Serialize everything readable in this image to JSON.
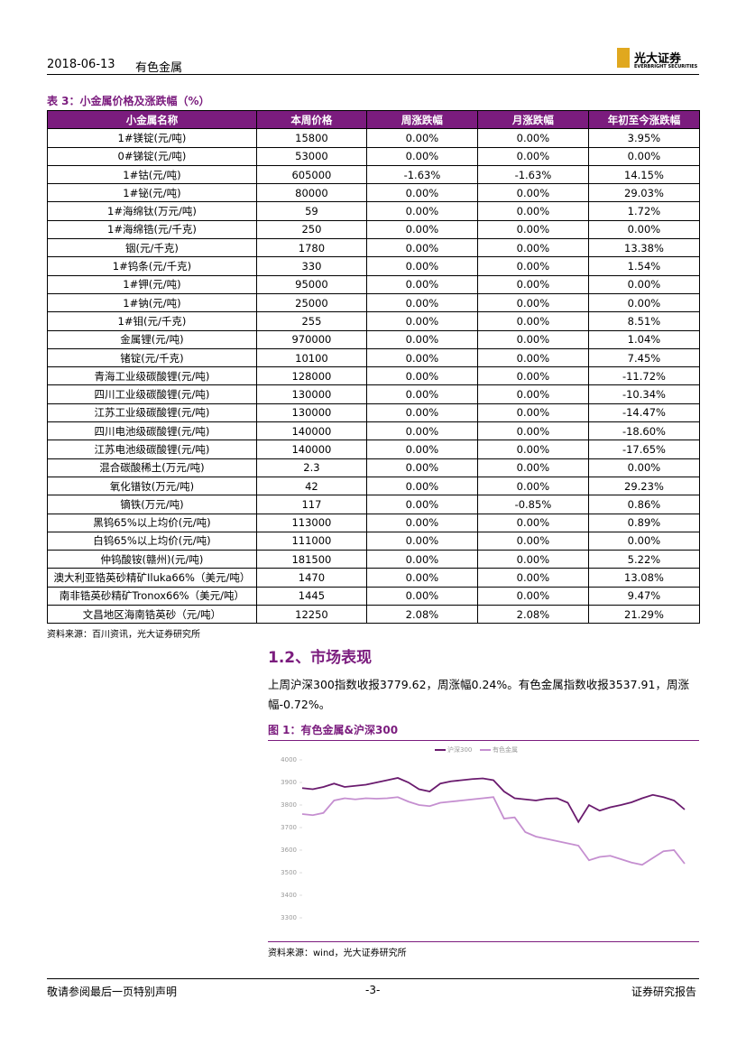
{
  "header": {
    "date": "2018-06-13",
    "industry": "有色金属",
    "logo_cn": "光大证券",
    "logo_en": "EVERBRIGHT SECURITIES"
  },
  "table": {
    "caption": "表 3：小金属价格及涨跌幅（%）",
    "columns": [
      "小金属名称",
      "本周价格",
      "周涨跌幅",
      "月涨跌幅",
      "年初至今涨跌幅"
    ],
    "rows": [
      [
        "1#镁锭(元/吨)",
        "15800",
        "0.00%",
        "0.00%",
        "3.95%"
      ],
      [
        "0#锑锭(元/吨)",
        "53000",
        "0.00%",
        "0.00%",
        "0.00%"
      ],
      [
        "1#钴(元/吨)",
        "605000",
        "-1.63%",
        "-1.63%",
        "14.15%"
      ],
      [
        "1#铋(元/吨)",
        "80000",
        "0.00%",
        "0.00%",
        "29.03%"
      ],
      [
        "1#海绵钛(万元/吨)",
        "59",
        "0.00%",
        "0.00%",
        "1.72%"
      ],
      [
        "1#海绵锆(元/千克)",
        "250",
        "0.00%",
        "0.00%",
        "0.00%"
      ],
      [
        "铟(元/千克)",
        "1780",
        "0.00%",
        "0.00%",
        "13.38%"
      ],
      [
        "1#钨条(元/千克)",
        "330",
        "0.00%",
        "0.00%",
        "1.54%"
      ],
      [
        "1#钾(元/吨)",
        "95000",
        "0.00%",
        "0.00%",
        "0.00%"
      ],
      [
        "1#钠(元/吨)",
        "25000",
        "0.00%",
        "0.00%",
        "0.00%"
      ],
      [
        "1#钼(元/千克)",
        "255",
        "0.00%",
        "0.00%",
        "8.51%"
      ],
      [
        "金属锂(元/吨)",
        "970000",
        "0.00%",
        "0.00%",
        "1.04%"
      ],
      [
        "锗锭(元/千克)",
        "10100",
        "0.00%",
        "0.00%",
        "7.45%"
      ],
      [
        "青海工业级碳酸锂(元/吨)",
        "128000",
        "0.00%",
        "0.00%",
        "-11.72%"
      ],
      [
        "四川工业级碳酸锂(元/吨)",
        "130000",
        "0.00%",
        "0.00%",
        "-10.34%"
      ],
      [
        "江苏工业级碳酸锂(元/吨)",
        "130000",
        "0.00%",
        "0.00%",
        "-14.47%"
      ],
      [
        "四川电池级碳酸锂(元/吨)",
        "140000",
        "0.00%",
        "0.00%",
        "-18.60%"
      ],
      [
        "江苏电池级碳酸锂(元/吨)",
        "140000",
        "0.00%",
        "0.00%",
        "-17.65%"
      ],
      [
        "混合碳酸稀土(万元/吨)",
        "2.3",
        "0.00%",
        "0.00%",
        "0.00%"
      ],
      [
        "氧化镨钕(万元/吨)",
        "42",
        "0.00%",
        "0.00%",
        "29.23%"
      ],
      [
        "镝铁(万元/吨)",
        "117",
        "0.00%",
        "-0.85%",
        "0.86%"
      ],
      [
        "黑钨65%以上均价(元/吨)",
        "113000",
        "0.00%",
        "0.00%",
        "0.89%"
      ],
      [
        "白钨65%以上均价(元/吨)",
        "111000",
        "0.00%",
        "0.00%",
        "0.00%"
      ],
      [
        "仲钨酸铵(赣州)(元/吨)",
        "181500",
        "0.00%",
        "0.00%",
        "5.22%"
      ],
      [
        "澳大利亚锆英砂精矿Iluka66%（美元/吨）",
        "1470",
        "0.00%",
        "0.00%",
        "13.08%"
      ],
      [
        "南非锆英砂精矿Tronox66%（美元/吨）",
        "1445",
        "0.00%",
        "0.00%",
        "9.47%"
      ],
      [
        "文昌地区海南锆英砂（元/吨）",
        "12250",
        "2.08%",
        "2.08%",
        "21.29%"
      ]
    ],
    "source": "资料来源：百川资讯，光大证券研究所"
  },
  "section": {
    "heading": "1.2、市场表现",
    "paragraph": "上周沪深300指数收报3779.62，周涨幅0.24%。有色金属指数收报3537.91，周涨幅-0.72%。"
  },
  "chart_data": {
    "type": "line",
    "title": "图 1：有色金属&沪深300",
    "categories": [
      null,
      null,
      null,
      null,
      null,
      null,
      null,
      null,
      null,
      null,
      null,
      null,
      null,
      null,
      null,
      null,
      null,
      null,
      null,
      null,
      null,
      null,
      null,
      null,
      null,
      null,
      null,
      null,
      null,
      null,
      null,
      null,
      null,
      null,
      null,
      null,
      null
    ],
    "series": [
      {
        "name": "沪深300",
        "color": "#6a1b6e",
        "values": [
          3875,
          3870,
          3880,
          3895,
          3880,
          3885,
          3890,
          3900,
          3910,
          3920,
          3900,
          3870,
          3860,
          3895,
          3905,
          3910,
          3915,
          3918,
          3910,
          3860,
          3830,
          3825,
          3820,
          3828,
          3830,
          3810,
          3725,
          3800,
          3775,
          3790,
          3800,
          3812,
          3830,
          3845,
          3835,
          3820,
          3780
        ]
      },
      {
        "name": "有色金属",
        "color": "#c58fd0",
        "values": [
          3760,
          3755,
          3765,
          3820,
          3830,
          3825,
          3830,
          3828,
          3830,
          3835,
          3815,
          3800,
          3795,
          3810,
          3815,
          3820,
          3825,
          3830,
          3835,
          3740,
          3745,
          3680,
          3660,
          3650,
          3640,
          3630,
          3620,
          3555,
          3570,
          3575,
          3560,
          3545,
          3535,
          3565,
          3595,
          3600,
          3540
        ]
      }
    ],
    "ylim": [
      3300,
      4000
    ],
    "yticks": [
      3300,
      3400,
      3500,
      3600,
      3700,
      3800,
      3900,
      4000
    ],
    "source": "资料来源：wind，光大证券研究所"
  },
  "footer": {
    "left": "敬请参阅最后一页特别声明",
    "center": "-3-",
    "right": "证券研究报告"
  }
}
